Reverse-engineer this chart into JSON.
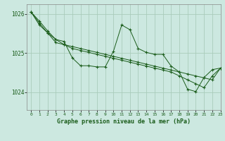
{
  "title": "Graphe pression niveau de la mer (hPa)",
  "background_color": "#cce8e0",
  "line_color": "#1a5c1a",
  "grid_color": "#aaccbb",
  "xlim": [
    -0.5,
    23
  ],
  "ylim": [
    1023.55,
    1026.25
  ],
  "yticks": [
    1024,
    1025,
    1026
  ],
  "xticks": [
    0,
    1,
    2,
    3,
    4,
    5,
    6,
    7,
    8,
    9,
    10,
    11,
    12,
    13,
    14,
    15,
    16,
    17,
    18,
    19,
    20,
    21,
    22,
    23
  ],
  "series": [
    {
      "x": [
        0,
        1,
        2,
        3,
        4,
        5,
        6,
        7,
        8,
        9,
        10,
        11,
        12,
        13,
        14,
        15,
        16,
        17,
        18,
        19,
        20,
        21,
        22,
        23
      ],
      "y": [
        1026.05,
        1025.72,
        1025.52,
        1025.35,
        1025.3,
        1024.88,
        1024.68,
        1024.68,
        1024.65,
        1024.65,
        1025.05,
        1025.72,
        1025.6,
        1025.12,
        1025.02,
        1024.97,
        1024.97,
        1024.67,
        1024.52,
        1024.08,
        1024.02,
        1024.38,
        1024.58,
        1024.62
      ]
    },
    {
      "x": [
        0,
        1,
        2,
        3,
        4,
        5,
        6,
        7,
        8,
        9,
        10,
        11,
        12,
        13,
        14,
        15,
        16,
        17,
        18,
        19,
        20,
        21,
        22,
        23
      ],
      "y": [
        1026.05,
        1025.82,
        1025.57,
        1025.35,
        1025.22,
        1025.17,
        1025.12,
        1025.07,
        1025.02,
        1024.97,
        1024.92,
        1024.87,
        1024.82,
        1024.77,
        1024.72,
        1024.67,
        1024.62,
        1024.57,
        1024.52,
        1024.47,
        1024.42,
        1024.37,
        1024.32,
        1024.62
      ]
    },
    {
      "x": [
        0,
        1,
        2,
        3,
        4,
        5,
        6,
        7,
        8,
        9,
        10,
        11,
        12,
        13,
        14,
        15,
        16,
        17,
        18,
        19,
        20,
        21,
        22,
        23
      ],
      "y": [
        1026.05,
        1025.77,
        1025.52,
        1025.27,
        1025.22,
        1025.12,
        1025.07,
        1025.02,
        1024.97,
        1024.92,
        1024.87,
        1024.82,
        1024.77,
        1024.72,
        1024.67,
        1024.62,
        1024.57,
        1024.52,
        1024.42,
        1024.32,
        1024.22,
        1024.12,
        1024.42,
        1024.62
      ]
    }
  ],
  "figsize": [
    3.2,
    2.0
  ],
  "dpi": 100
}
